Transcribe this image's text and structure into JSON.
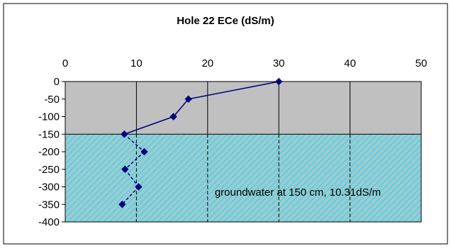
{
  "chart_data": {
    "type": "line",
    "title": "Hole 22 ECe (dS/m)",
    "xlim": [
      0,
      50
    ],
    "ylim": [
      -400,
      0
    ],
    "x_ticks": [
      "0",
      "10",
      "20",
      "30",
      "40",
      "50"
    ],
    "y_ticks": [
      "0",
      "-50",
      "-100",
      "-150",
      "-200",
      "-250",
      "-300",
      "-350",
      "-400"
    ],
    "x_axis_position": "top",
    "grid": "vertical",
    "zones": [
      {
        "name": "unsaturated",
        "from": 0,
        "to": -150,
        "fill": "#c0c0c0"
      },
      {
        "name": "groundwater",
        "from": -150,
        "to": -400,
        "fill": "#99cccc",
        "hatch": "#33ccff"
      }
    ],
    "annotation": "groundwater at 150 cm, 10.31dS/m",
    "series": [
      {
        "color": "#000080",
        "points": [
          {
            "x": 30.0,
            "y": 0
          },
          {
            "x": 17.3,
            "y": -50
          },
          {
            "x": 15.2,
            "y": -100
          },
          {
            "x": 8.3,
            "y": -150
          },
          {
            "x": 11.1,
            "y": -200
          },
          {
            "x": 8.4,
            "y": -250
          },
          {
            "x": 10.3,
            "y": -300
          },
          {
            "x": 8.0,
            "y": -350
          }
        ],
        "solid_until_y": -150
      }
    ]
  }
}
